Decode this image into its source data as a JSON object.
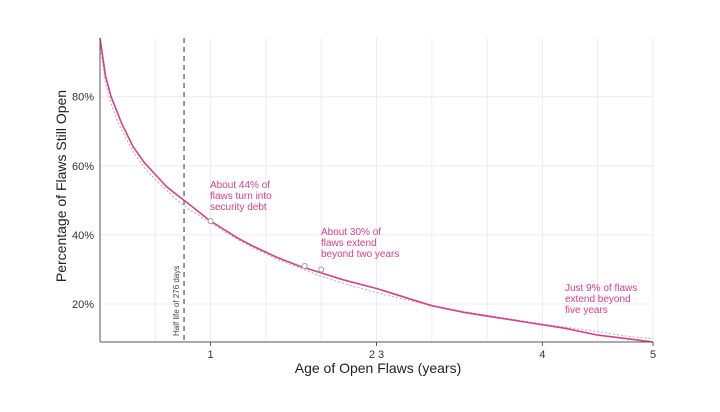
{
  "colors": {
    "curve": "#d6408a",
    "fit": "#b8b8b8",
    "grid": "#ececec",
    "axis": "#555555",
    "halflife_line": "#777777",
    "annotation": "#d6408a"
  },
  "chart_data": {
    "type": "line",
    "xlabel": "Age of Open Flaws (years)",
    "ylabel": "Percentage of Flaws Still Open",
    "xlim": [
      0,
      5
    ],
    "ylim": [
      0.09,
      0.97
    ],
    "x_ticks": [
      {
        "value": 1,
        "label": "1"
      },
      {
        "value": 2.5,
        "label": "2 3"
      },
      {
        "value": 4,
        "label": "4"
      },
      {
        "value": 5,
        "label": "5"
      }
    ],
    "y_ticks": [
      {
        "value": 0.2,
        "label": "20%"
      },
      {
        "value": 0.4,
        "label": "40%"
      },
      {
        "value": 0.6,
        "label": "60%"
      },
      {
        "value": 0.8,
        "label": "80%"
      }
    ],
    "grid": true,
    "series": [
      {
        "x": [
          0,
          0.05,
          0.1,
          0.15,
          0.2,
          0.3,
          0.4,
          0.5,
          0.6,
          0.7,
          0.76,
          0.8,
          0.9,
          1.0,
          1.1,
          1.25,
          1.4,
          1.6,
          1.8,
          2.0,
          2.2,
          2.5,
          2.8,
          3.0,
          3.3,
          3.6,
          3.9,
          4.2,
          4.5,
          4.8,
          5.0
        ],
        "y": [
          0.97,
          0.86,
          0.8,
          0.76,
          0.72,
          0.655,
          0.61,
          0.575,
          0.54,
          0.515,
          0.5,
          0.49,
          0.465,
          0.44,
          0.42,
          0.39,
          0.365,
          0.335,
          0.31,
          0.29,
          0.27,
          0.245,
          0.215,
          0.195,
          0.175,
          0.16,
          0.145,
          0.13,
          0.11,
          0.098,
          0.09
        ]
      },
      {
        "x": [
          0,
          0.05,
          0.1,
          0.15,
          0.2,
          0.3,
          0.4,
          0.5,
          0.6,
          0.7,
          0.8,
          0.9,
          1.0,
          1.2,
          1.4,
          1.6,
          1.8,
          2.0,
          2.3,
          2.6,
          3.0,
          3.3,
          3.6,
          3.9,
          4.2,
          4.5,
          4.8,
          5.0
        ],
        "y": [
          0.95,
          0.84,
          0.78,
          0.735,
          0.7,
          0.64,
          0.595,
          0.56,
          0.53,
          0.5,
          0.475,
          0.455,
          0.435,
          0.395,
          0.36,
          0.33,
          0.305,
          0.28,
          0.25,
          0.225,
          0.195,
          0.178,
          0.162,
          0.147,
          0.133,
          0.12,
          0.105,
          0.1
        ]
      }
    ],
    "halflife": {
      "x": 0.76,
      "label": "Half life of 276 days"
    },
    "annotations": [
      {
        "x": 1.0,
        "y": 0.44,
        "lines": [
          "About 44% of",
          "flaws turn into",
          "security debt"
        ]
      },
      {
        "x": 2.0,
        "y": 0.3,
        "lines": [
          "About 30% of",
          "flaws extend",
          "beyond two years"
        ]
      },
      {
        "x": 5.0,
        "y": 0.09,
        "lines": [
          "Just 9% of flaws",
          "extend beyond",
          "five years"
        ]
      }
    ],
    "markers": [
      {
        "x": 1.0,
        "y": 0.44
      },
      {
        "x": 1.85,
        "y": 0.31
      },
      {
        "x": 2.0,
        "y": 0.3
      }
    ]
  }
}
